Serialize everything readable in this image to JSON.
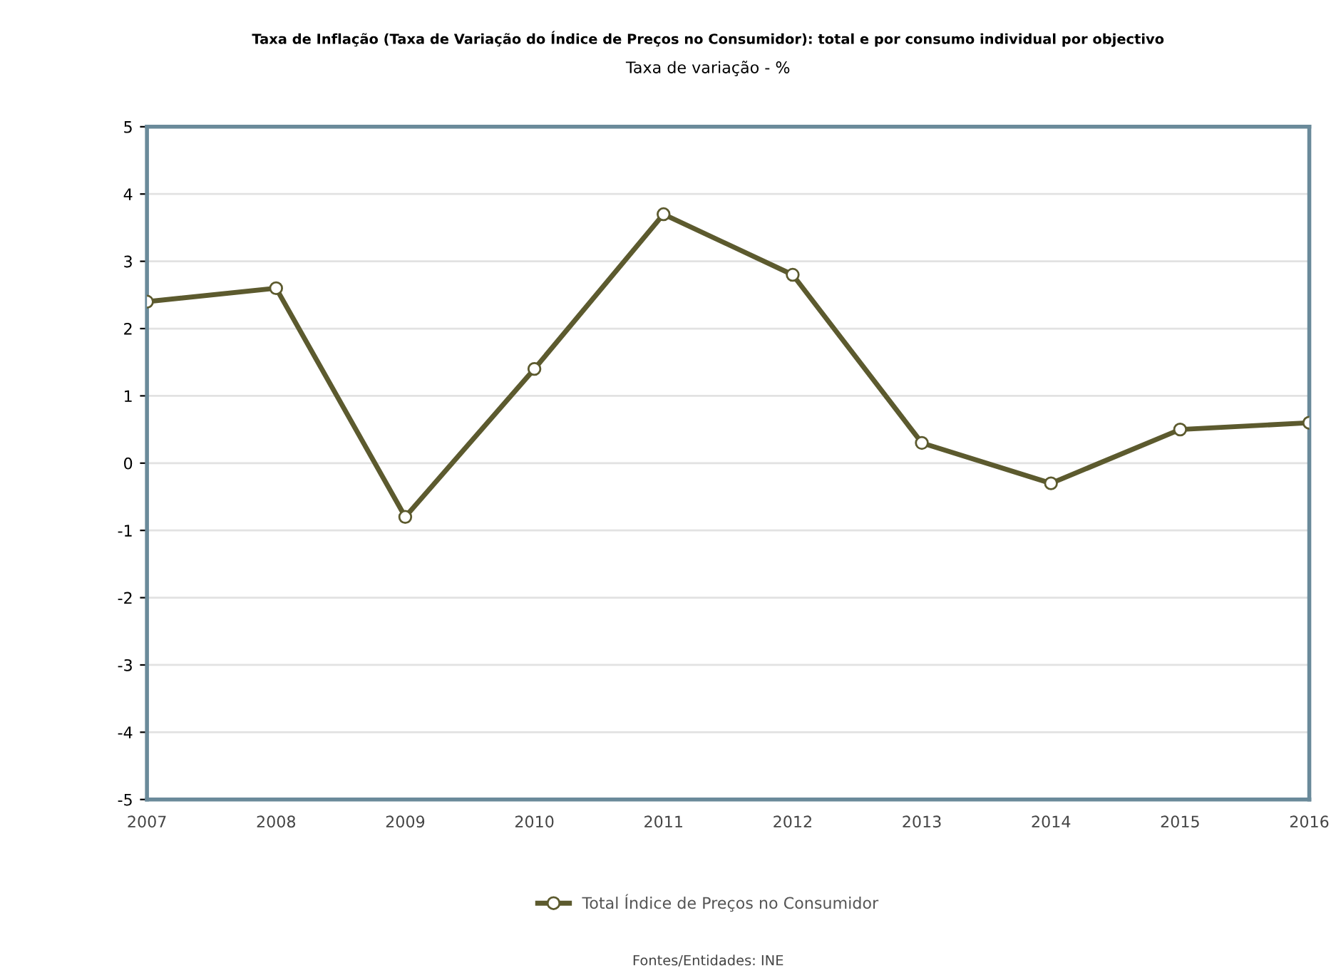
{
  "chart_data": {
    "type": "line",
    "title": "Taxa de Inflação (Taxa de Variação do Índice de Preços no Consumidor): total e por consumo individual por objectivo",
    "subtitle": "Taxa de variação - %",
    "categories": [
      "2007",
      "2008",
      "2009",
      "2010",
      "2011",
      "2012",
      "2013",
      "2014",
      "2015",
      "2016"
    ],
    "series": [
      {
        "name": "Total Índice de Preços no Consumidor",
        "color": "#5c5a2e",
        "values": [
          2.4,
          2.6,
          -0.8,
          1.4,
          3.7,
          2.8,
          0.3,
          -0.3,
          0.5,
          0.6
        ]
      }
    ],
    "ylim": [
      -5,
      5
    ],
    "yticks": [
      -5,
      -4,
      -3,
      -2,
      -1,
      0,
      1,
      2,
      3,
      4,
      5
    ],
    "grid": "y",
    "legend": "bottom",
    "marker": "circle",
    "line_style": "solid",
    "annotations": [
      "Fontes/Entidades: INE"
    ]
  }
}
